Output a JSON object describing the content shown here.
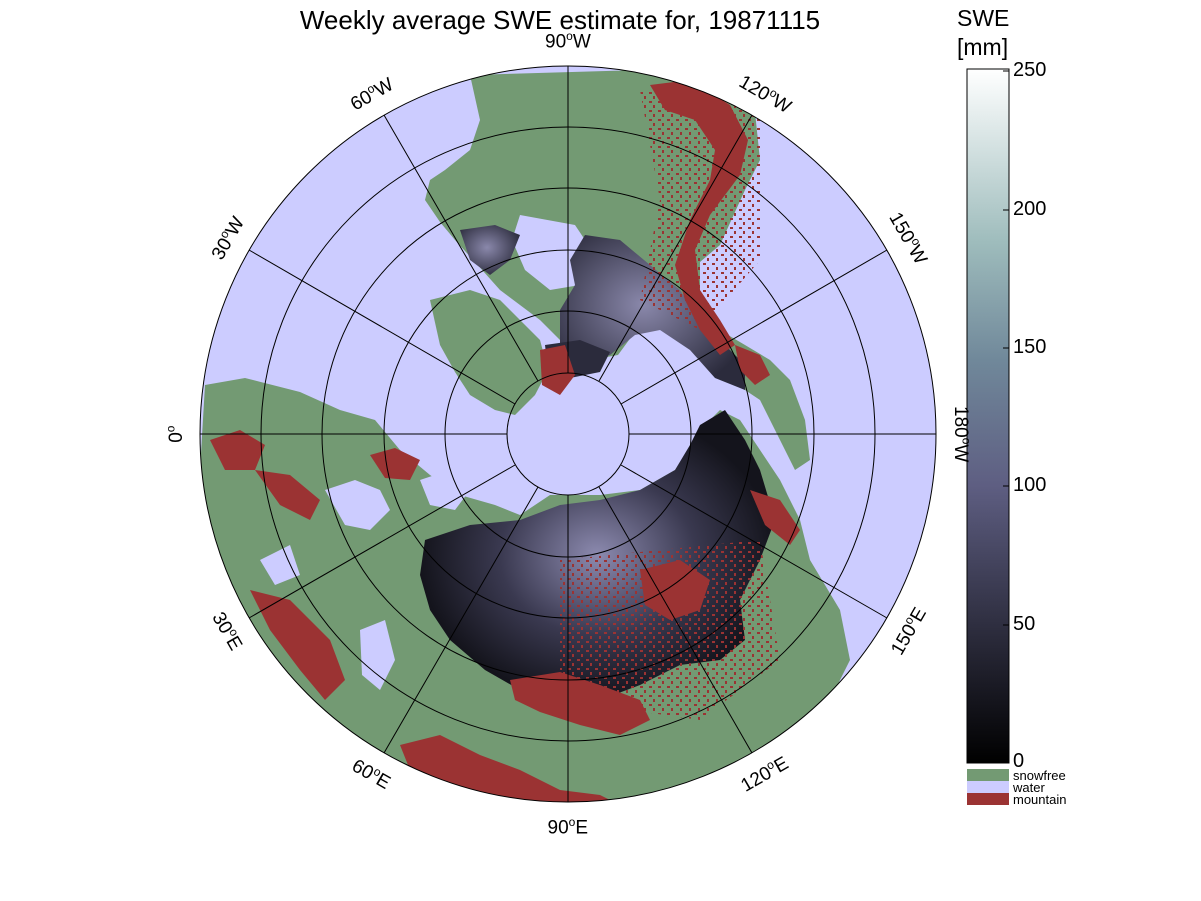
{
  "map": {
    "title": "Weekly average SWE estimate for, 19871115",
    "projection": "north polar stereographic",
    "longitude_labels": [
      {
        "text": "90",
        "suffix": "W"
      },
      {
        "text": "120",
        "suffix": "W"
      },
      {
        "text": "150",
        "suffix": "W"
      },
      {
        "text": "180",
        "suffix": "W"
      },
      {
        "text": "150",
        "suffix": "E"
      },
      {
        "text": "120",
        "suffix": "E"
      },
      {
        "text": "90",
        "suffix": "E"
      },
      {
        "text": "60",
        "suffix": "E"
      },
      {
        "text": "30",
        "suffix": "E"
      },
      {
        "text": "0",
        "suffix": ""
      },
      {
        "text": "30",
        "suffix": "W"
      },
      {
        "text": "60",
        "suffix": "W"
      }
    ],
    "degree_symbol": "o",
    "colors": {
      "water": "#ccccff",
      "snowfree": "#739a73",
      "mountain": "#9b3333",
      "snow_low": "#0a0a10",
      "snow_mid": "#6b6a90",
      "snow_high": "#ffffff"
    }
  },
  "colorbar": {
    "title_line1": "SWE",
    "title_line2": "[mm]",
    "ticks": [
      "250",
      "200",
      "150",
      "100",
      "50",
      "0"
    ],
    "range": [
      0,
      250
    ],
    "legend": [
      {
        "label": "snowfree",
        "color": "#739a73"
      },
      {
        "label": "water",
        "color": "#ccccff"
      },
      {
        "label": "mountain",
        "color": "#9b3333"
      }
    ]
  }
}
